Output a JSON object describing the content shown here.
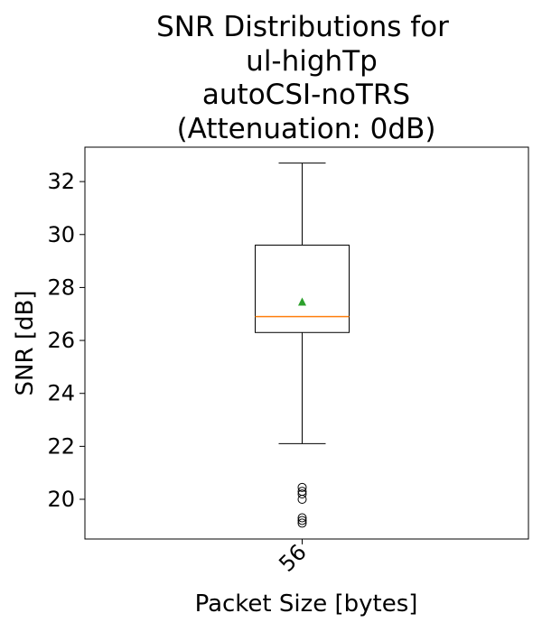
{
  "chart_data": {
    "type": "box",
    "title_lines": [
      "SNR Distributions for",
      "ul-highTp",
      "autoCSI-noTRS",
      "(Attenuation: 0dB)"
    ],
    "xlabel": "Packet Size [bytes]",
    "ylabel": "SNR [dB]",
    "categories": [
      "56"
    ],
    "ylim": [
      18.5,
      33.3
    ],
    "yticks": [
      20,
      22,
      24,
      26,
      28,
      30,
      32
    ],
    "grid": false,
    "boxes": [
      {
        "category": "56",
        "whisker_low": 22.1,
        "q1": 26.3,
        "median": 26.9,
        "q3": 29.6,
        "whisker_high": 32.7,
        "mean": 27.45,
        "outliers": [
          20.45,
          20.3,
          20.2,
          20.0,
          19.3,
          19.2,
          19.1
        ]
      }
    ],
    "colors": {
      "box": "#000000",
      "median": "#ff7f0e",
      "mean": "#2ca02c",
      "outlier": "#000000"
    }
  }
}
